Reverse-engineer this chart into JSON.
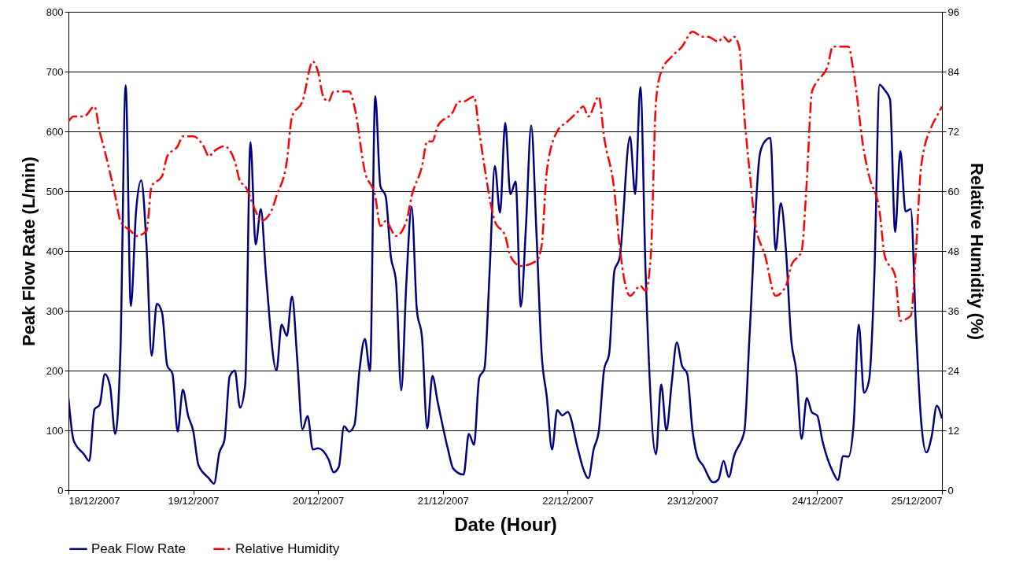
{
  "chart_data": {
    "type": "line",
    "xlabel": "Date (Hour)",
    "ylabel": "Peak Flow Rate (L/min)",
    "y2label": "Relative Humidity (%)",
    "xlim": [
      "2007-12-18",
      "2007-12-25"
    ],
    "xticks": [
      {
        "value": "2007-12-18",
        "label": "18/12/2007"
      },
      {
        "value": "2007-12-19",
        "label": "19/12/2007"
      },
      {
        "value": "2007-12-20",
        "label": "20/12/2007"
      },
      {
        "value": "2007-12-21",
        "label": "21/12/2007"
      },
      {
        "value": "2007-12-22",
        "label": "22/12/2007"
      },
      {
        "value": "2007-12-23",
        "label": "23/12/2007"
      },
      {
        "value": "2007-12-24",
        "label": "24/12/2007"
      },
      {
        "value": "2007-12-25",
        "label": "25/12/2007"
      }
    ],
    "ylim": [
      0,
      800
    ],
    "yticks": [
      0,
      100,
      200,
      300,
      400,
      500,
      600,
      700,
      800
    ],
    "y2lim": [
      0,
      96
    ],
    "y2ticks": [
      0,
      12,
      24,
      36,
      48,
      60,
      72,
      84,
      96
    ],
    "grid": "y",
    "legend": "bottom",
    "series": [
      {
        "name": "Peak Flow Rate",
        "color": "#000080",
        "line_style": "solid",
        "x": [
          "2007-12-18T00:00",
          "2007-12-18T01:00",
          "2007-12-18T03:00",
          "2007-12-18T04:00",
          "2007-12-18T05:00",
          "2007-12-18T06:00",
          "2007-12-18T07:00",
          "2007-12-18T08:00",
          "2007-12-18T09:00",
          "2007-12-18T10:00",
          "2007-12-18T11:00",
          "2007-12-18T12:00",
          "2007-12-18T13:00",
          "2007-12-18T14:00",
          "2007-12-18T15:00",
          "2007-12-18T16:00",
          "2007-12-18T17:00",
          "2007-12-18T18:00",
          "2007-12-18T19:00",
          "2007-12-18T20:00",
          "2007-12-18T21:00",
          "2007-12-18T22:00",
          "2007-12-18T23:00",
          "2007-12-19T00:00",
          "2007-12-19T01:00",
          "2007-12-19T03:00",
          "2007-12-19T04:00",
          "2007-12-19T05:00",
          "2007-12-19T06:00",
          "2007-12-19T07:00",
          "2007-12-19T08:00",
          "2007-12-19T09:00",
          "2007-12-19T10:00",
          "2007-12-19T11:00",
          "2007-12-19T12:00",
          "2007-12-19T13:00",
          "2007-12-19T14:00",
          "2007-12-19T16:00",
          "2007-12-19T17:00",
          "2007-12-19T18:00",
          "2007-12-19T19:00",
          "2007-12-19T20:00",
          "2007-12-19T21:00",
          "2007-12-19T22:00",
          "2007-12-19T23:00",
          "2007-12-20T00:00",
          "2007-12-20T02:00",
          "2007-12-20T03:00",
          "2007-12-20T04:00",
          "2007-12-20T05:00",
          "2007-12-20T06:00",
          "2007-12-20T07:00",
          "2007-12-20T08:00",
          "2007-12-20T09:00",
          "2007-12-20T10:00",
          "2007-12-20T11:00",
          "2007-12-20T12:00",
          "2007-12-20T13:00",
          "2007-12-20T14:00",
          "2007-12-20T15:00",
          "2007-12-20T16:00",
          "2007-12-20T17:00",
          "2007-12-20T18:00",
          "2007-12-20T19:00",
          "2007-12-20T20:00",
          "2007-12-20T21:00",
          "2007-12-20T22:00",
          "2007-12-20T23:00",
          "2007-12-21T01:00",
          "2007-12-21T02:00",
          "2007-12-21T04:00",
          "2007-12-21T05:00",
          "2007-12-21T06:00",
          "2007-12-21T07:00",
          "2007-12-21T08:00",
          "2007-12-21T09:00",
          "2007-12-21T10:00",
          "2007-12-21T11:00",
          "2007-12-21T12:00",
          "2007-12-21T13:00",
          "2007-12-21T14:00",
          "2007-12-21T15:00",
          "2007-12-21T16:00",
          "2007-12-21T17:00",
          "2007-12-21T18:00",
          "2007-12-21T19:00",
          "2007-12-21T20:00",
          "2007-12-21T21:00",
          "2007-12-21T22:00",
          "2007-12-21T23:00",
          "2007-12-22T00:00",
          "2007-12-22T02:00",
          "2007-12-22T03:00",
          "2007-12-22T04:00",
          "2007-12-22T05:00",
          "2007-12-22T06:00",
          "2007-12-22T07:00",
          "2007-12-22T08:00",
          "2007-12-22T09:00",
          "2007-12-22T10:00",
          "2007-12-22T12:00",
          "2007-12-22T13:00",
          "2007-12-22T14:00",
          "2007-12-22T15:00",
          "2007-12-22T17:00",
          "2007-12-22T18:00",
          "2007-12-22T19:00",
          "2007-12-22T20:00",
          "2007-12-22T21:00",
          "2007-12-22T22:00",
          "2007-12-22T23:00",
          "2007-12-23T00:00",
          "2007-12-23T01:00",
          "2007-12-23T02:00",
          "2007-12-23T04:00",
          "2007-12-23T05:00",
          "2007-12-23T06:00",
          "2007-12-23T07:00",
          "2007-12-23T08:00",
          "2007-12-23T10:00",
          "2007-12-23T11:00",
          "2007-12-23T13:00",
          "2007-12-23T14:00",
          "2007-12-23T15:00",
          "2007-12-23T16:00",
          "2007-12-23T17:00",
          "2007-12-23T18:00",
          "2007-12-23T19:00",
          "2007-12-23T20:00",
          "2007-12-23T21:00",
          "2007-12-23T22:00",
          "2007-12-23T23:00",
          "2007-12-24T00:00",
          "2007-12-24T01:00",
          "2007-12-24T03:00",
          "2007-12-24T04:00",
          "2007-12-24T05:00",
          "2007-12-24T06:00",
          "2007-12-24T07:00",
          "2007-12-24T08:00",
          "2007-12-24T09:00",
          "2007-12-24T10:00",
          "2007-12-24T11:00",
          "2007-12-24T12:00",
          "2007-12-24T13:00",
          "2007-12-24T14:00",
          "2007-12-24T15:00",
          "2007-12-24T16:00",
          "2007-12-24T17:00",
          "2007-12-24T18:00",
          "2007-12-24T19:00",
          "2007-12-24T20:00",
          "2007-12-24T21:00",
          "2007-12-24T22:00",
          "2007-12-24T23:00",
          "2007-12-25T00:00"
        ],
        "values": [
          154,
          83,
          60,
          49,
          135,
          143,
          194,
          174,
          94,
          234,
          677,
          308,
          466,
          518,
          411,
          225,
          312,
          297,
          208,
          195,
          98,
          168,
          125,
          99,
          42,
          20,
          11,
          62,
          84,
          190,
          200,
          138,
          177,
          582,
          411,
          470,
          359,
          200,
          277,
          258,
          324,
          219,
          102,
          124,
          68,
          70,
          52,
          30,
          39,
          107,
          98,
          109,
          203,
          253,
          199,
          659,
          508,
          492,
          391,
          349,
          167,
          349,
          474,
          302,
          255,
          103,
          191,
          148,
          68,
          36,
          26,
          94,
          76,
          188,
          203,
          365,
          542,
          464,
          614,
          495,
          516,
          307,
          443,
          610,
          432,
          229,
          156,
          68,
          134,
          125,
          131,
          68,
          36,
          20,
          68,
          99,
          200,
          229,
          367,
          388,
          591,
          495,
          674,
          365,
          60,
          177,
          100,
          177,
          247,
          208,
          195,
          102,
          55,
          42,
          13,
          18,
          49,
          22,
          57,
          99,
          260,
          563,
          584,
          589,
          401,
          480,
          401,
          253,
          198,
          86,
          154,
          130,
          125,
          83,
          31,
          17,
          57,
          56,
          109,
          277,
          163,
          185,
          359,
          678,
          669,
          654,
          432,
          567,
          466,
          470,
          271,
          115,
          63,
          89,
          141,
          120
        ]
      },
      {
        "name": "Relative Humidity",
        "color": "#ff0000",
        "line_style": "dashed",
        "axis": "y2",
        "x": [
          "2007-12-18T00:00",
          "2007-12-18T01:00",
          "2007-12-18T03:00",
          "2007-12-18T05:00",
          "2007-12-18T06:00",
          "2007-12-18T07:00",
          "2007-12-18T09:00",
          "2007-12-18T10:00",
          "2007-12-18T12:00",
          "2007-12-18T13:00",
          "2007-12-18T15:00",
          "2007-12-18T16:00",
          "2007-12-18T18:00",
          "2007-12-18T19:00",
          "2007-12-18T21:00",
          "2007-12-18T22:00",
          "2007-12-19T00:00",
          "2007-12-19T02:00",
          "2007-12-19T03:00",
          "2007-12-19T04:00",
          "2007-12-19T06:00",
          "2007-12-19T08:00",
          "2007-12-19T09:00",
          "2007-12-19T10:00",
          "2007-12-19T12:00",
          "2007-12-19T13:00",
          "2007-12-19T15:00",
          "2007-12-19T16:00",
          "2007-12-19T18:00",
          "2007-12-19T19:00",
          "2007-12-19T21:00",
          "2007-12-19T23:00",
          "2007-12-20T00:00",
          "2007-12-20T01:00",
          "2007-12-20T02:00",
          "2007-12-20T03:00",
          "2007-12-20T06:00",
          "2007-12-20T07:00",
          "2007-12-20T09:00",
          "2007-12-20T11:00",
          "2007-12-20T12:00",
          "2007-12-20T13:00",
          "2007-12-20T15:00",
          "2007-12-20T17:00",
          "2007-12-20T18:00",
          "2007-12-20T20:00",
          "2007-12-20T21:00",
          "2007-12-20T22:00",
          "2007-12-20T23:00",
          "2007-12-21T02:00",
          "2007-12-21T03:00",
          "2007-12-21T04:00",
          "2007-12-21T06:00",
          "2007-12-21T07:00",
          "2007-12-21T08:00",
          "2007-12-21T10:00",
          "2007-12-21T12:00",
          "2007-12-21T13:00",
          "2007-12-21T15:00",
          "2007-12-21T18:00",
          "2007-12-21T19:00",
          "2007-12-21T20:00",
          "2007-12-21T22:00",
          "2007-12-22T00:00",
          "2007-12-22T02:00",
          "2007-12-22T03:00",
          "2007-12-22T04:00",
          "2007-12-22T06:00",
          "2007-12-22T07:00",
          "2007-12-22T09:00",
          "2007-12-22T10:00",
          "2007-12-22T12:00",
          "2007-12-22T14:00",
          "2007-12-22T15:00",
          "2007-12-22T16:00",
          "2007-12-22T17:00",
          "2007-12-22T18:00",
          "2007-12-22T20:00",
          "2007-12-22T22:00",
          "2007-12-23T00:00",
          "2007-12-23T02:00",
          "2007-12-23T03:00",
          "2007-12-23T05:00",
          "2007-12-23T06:00",
          "2007-12-23T07:00",
          "2007-12-23T08:00",
          "2007-12-23T09:00",
          "2007-12-23T10:00",
          "2007-12-23T11:00",
          "2007-12-23T12:00",
          "2007-12-23T14:00",
          "2007-12-23T16:00",
          "2007-12-23T18:00",
          "2007-12-23T19:00",
          "2007-12-23T21:00",
          "2007-12-23T22:00",
          "2007-12-23T23:00",
          "2007-12-24T00:00",
          "2007-12-24T02:00",
          "2007-12-24T03:00",
          "2007-12-24T06:00",
          "2007-12-24T07:00",
          "2007-12-24T09:00",
          "2007-12-24T10:00",
          "2007-12-24T12:00",
          "2007-12-24T13:00",
          "2007-12-24T15:00",
          "2007-12-24T16:00",
          "2007-12-24T18:00",
          "2007-12-24T19:00",
          "2007-12-24T20:00",
          "2007-12-24T22:00",
          "2007-12-24T23:00",
          "2007-12-25T00:00"
        ],
        "values": [
          74,
          75,
          75,
          77,
          72,
          68,
          59,
          54,
          52,
          51,
          52,
          61,
          63,
          67,
          69,
          71,
          71,
          69,
          67,
          68,
          69,
          66,
          62,
          61,
          56,
          54,
          56,
          59,
          66,
          75,
          78,
          86,
          84,
          79,
          78,
          80,
          80,
          77,
          64,
          59,
          53,
          54,
          51,
          54,
          59,
          65,
          70,
          70,
          73,
          76,
          78,
          78,
          79,
          72,
          65,
          54,
          51,
          47,
          45,
          46,
          49,
          64,
          72,
          74,
          76,
          77,
          75,
          79,
          71,
          60,
          49,
          39,
          41,
          40,
          47,
          78,
          84,
          87,
          89,
          92,
          91,
          91,
          90,
          91,
          90,
          91,
          89,
          75,
          64,
          54,
          47,
          39,
          41,
          45,
          48,
          62,
          80,
          82,
          85,
          89,
          89,
          84,
          68,
          63,
          56,
          47,
          43,
          34,
          35,
          48,
          65,
          73,
          75,
          77
        ]
      }
    ]
  }
}
